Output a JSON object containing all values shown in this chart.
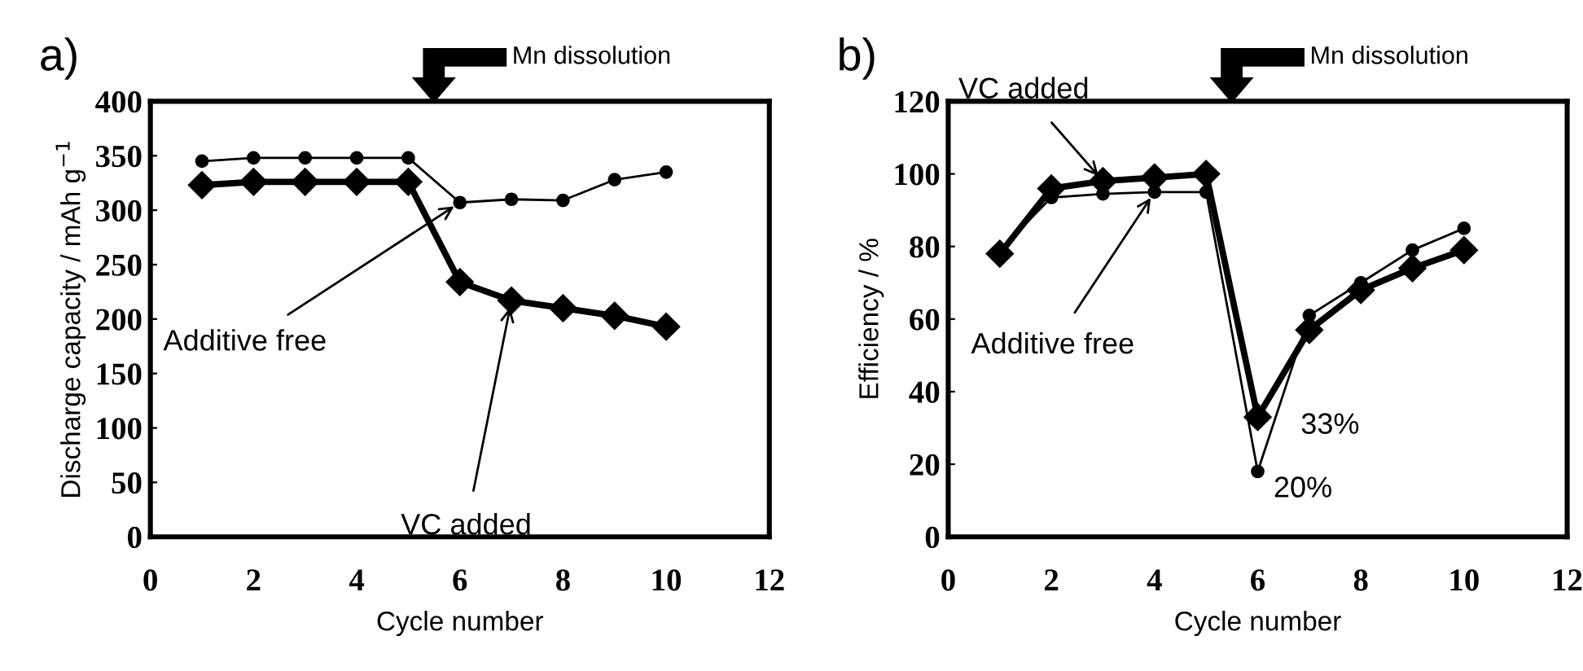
{
  "chart_data": [
    {
      "type": "line",
      "title": "a)",
      "xlabel": "Cycle number",
      "ylabel": "Discharge capacity / mAh g$^{−1}$",
      "x": [
        1,
        2,
        3,
        4,
        5,
        6,
        7,
        8,
        9,
        10
      ],
      "series": [
        {
          "name": "Additive free",
          "color": "#000000",
          "marker": "circle",
          "values": [
            345,
            348,
            348,
            348,
            348,
            307,
            310,
            309,
            328,
            335
          ]
        },
        {
          "name": "VC added",
          "color": "#000000",
          "marker": "diamond",
          "values": [
            323,
            326,
            326,
            326,
            326,
            234,
            217,
            210,
            203,
            193
          ]
        }
      ],
      "annotations": [
        "Mn dissolution"
      ],
      "xlim": [
        0,
        12
      ],
      "xticks": [
        0,
        2,
        4,
        6,
        8,
        10,
        12
      ],
      "ylim": [
        0,
        400
      ],
      "yticks": [
        0,
        50,
        100,
        150,
        200,
        250,
        300,
        350,
        400
      ],
      "grid": false
    },
    {
      "type": "line",
      "title": "b)",
      "xlabel": "Cycle number",
      "ylabel": "Efficiency / %",
      "x": [
        1,
        2,
        3,
        4,
        5,
        6,
        7,
        8,
        9,
        10
      ],
      "series": [
        {
          "name": "Additive free",
          "color": "#000000",
          "marker": "circle",
          "values": [
            79,
            93.5,
            94.5,
            95,
            95,
            18,
            61,
            70,
            79,
            85
          ]
        },
        {
          "name": "VC added",
          "color": "#000000",
          "marker": "diamond",
          "values": [
            78,
            96,
            98,
            99,
            100,
            33,
            57,
            68,
            74,
            79
          ]
        }
      ],
      "annotations": [
        "Mn dissolution",
        {
          "text": "33%",
          "x": 6,
          "y": 33
        },
        {
          "text": "20%",
          "x": 6,
          "y": 18
        }
      ],
      "xlim": [
        0,
        12
      ],
      "xticks": [
        0,
        2,
        4,
        6,
        8,
        10,
        12
      ],
      "ylim": [
        0,
        120
      ],
      "yticks": [
        0,
        20,
        40,
        60,
        80,
        100,
        120
      ],
      "grid": false
    }
  ]
}
